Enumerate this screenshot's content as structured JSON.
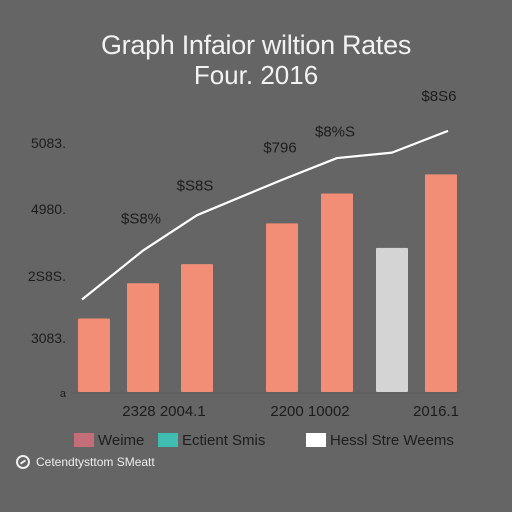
{
  "chart_data": {
    "type": "bar",
    "title": "Graph Infaior wiltion Rates",
    "subtitle": "Four. 2016",
    "y_tick_labels": [
      "5083.",
      "4980.",
      "2S8S.",
      "3083.",
      "a"
    ],
    "x_group_labels": [
      "2328 2004.1",
      "2200 10002",
      "2016.1"
    ],
    "ylim": [
      0,
      100
    ],
    "bars": [
      {
        "value": 27,
        "color": "#f28e75"
      },
      {
        "value": 40,
        "color": "#f28e75"
      },
      {
        "value": 47,
        "color": "#f28e75"
      },
      {
        "value": 62,
        "color": "#f28e75"
      },
      {
        "value": 73,
        "color": "#f28e75"
      },
      {
        "value": 53,
        "color": "#d4d4d4"
      },
      {
        "value": 80,
        "color": "#f28e75"
      }
    ],
    "trend_line": {
      "name": "",
      "x": [
        0,
        1,
        2,
        3,
        4,
        5,
        6
      ],
      "y": [
        34,
        52,
        65,
        78,
        86,
        88,
        96
      ],
      "color": "#ffffff"
    },
    "data_labels": [
      {
        "text": "$S8%",
        "bar": 1,
        "y": 62
      },
      {
        "text": "$S8S",
        "bar": 2,
        "y": 74
      },
      {
        "text": "$796",
        "bar": 3,
        "y": 88
      },
      {
        "text": "$8%S",
        "bar": 4,
        "y": 94
      },
      {
        "text": "$8S6",
        "bar": 6,
        "y": 107
      }
    ],
    "grid": false
  },
  "legend": [
    {
      "label": "Weime",
      "color": "#c46f78"
    },
    {
      "label": "Ectient Smis",
      "color": "#3fbdb3"
    },
    {
      "label": "Hessl Stre Weems",
      "color": "#ffffff"
    }
  ],
  "footer": {
    "text": "Cetendtysttom SMeatt",
    "icon": "circle-slash-icon"
  }
}
